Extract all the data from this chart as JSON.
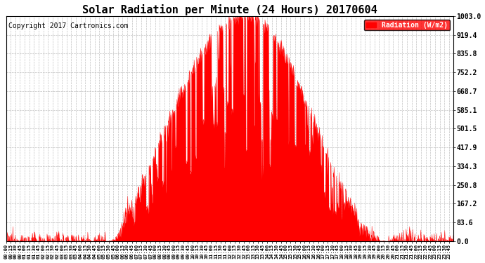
{
  "title": "Solar Radiation per Minute (24 Hours) 20170604",
  "copyright": "Copyright 2017 Cartronics.com",
  "legend_label": "Radiation (W/m2)",
  "y_ticks": [
    0.0,
    83.6,
    167.2,
    250.8,
    334.3,
    417.9,
    501.5,
    585.1,
    668.7,
    752.2,
    835.8,
    919.4,
    1003.0
  ],
  "y_max": 1003.0,
  "bar_color": "#FF0000",
  "background_color": "#FFFFFF",
  "grid_color": "#BBBBBB",
  "dashed_line_color": "#FF0000",
  "title_fontsize": 11,
  "copyright_fontsize": 7,
  "legend_bg": "#FF0000",
  "legend_text_color": "#FFFFFF",
  "sunrise_min": 320,
  "sunset_min": 1225,
  "peak_min": 770
}
